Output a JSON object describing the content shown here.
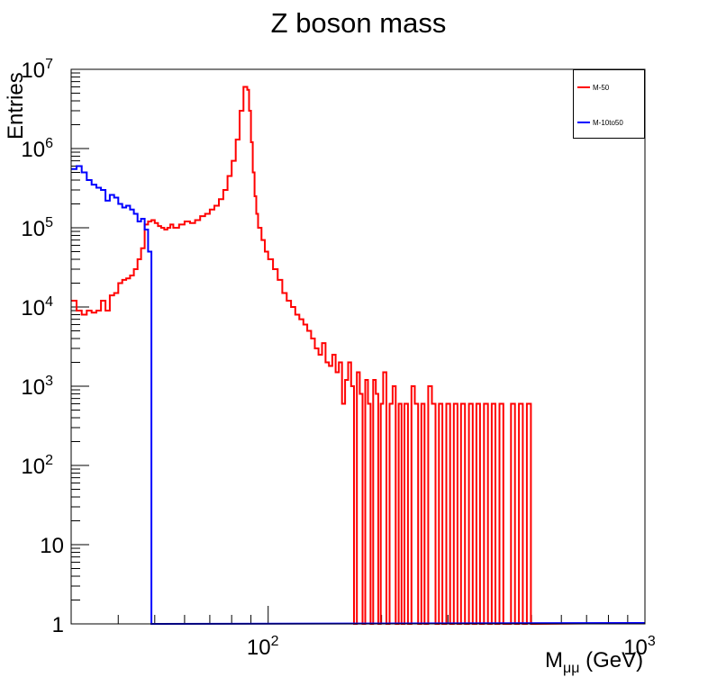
{
  "colors": {
    "m50": "#ff0000",
    "m10to50": "#0000ff"
  },
  "chart_data": {
    "type": "line",
    "title": "Z boson mass",
    "xlabel": "Mμμ (GeV)",
    "xlabel_main": "M",
    "xlabel_sub": "μμ",
    "xlabel_unit": " (GeV)",
    "ylabel": "Entries",
    "xscale": "log",
    "yscale": "log",
    "xlim": [
      30,
      1000
    ],
    "ylim": [
      1,
      10000000
    ],
    "x_ticks": [
      {
        "base": "10",
        "exp": "2",
        "value": 100
      },
      {
        "base": "10",
        "exp": "3",
        "value": 1000
      }
    ],
    "y_ticks": [
      {
        "base": "1",
        "exp": "",
        "value": 1
      },
      {
        "base": "10",
        "exp": "",
        "value": 10
      },
      {
        "base": "10",
        "exp": "2",
        "value": 100
      },
      {
        "base": "10",
        "exp": "3",
        "value": 1000
      },
      {
        "base": "10",
        "exp": "4",
        "value": 10000
      },
      {
        "base": "10",
        "exp": "5",
        "value": 100000
      },
      {
        "base": "10",
        "exp": "6",
        "value": 1000000
      },
      {
        "base": "10",
        "exp": "7",
        "value": 10000000
      }
    ],
    "legend_position": "top-right",
    "series": [
      {
        "name": "M-50",
        "color": "#ff0000",
        "x": [
          30,
          31,
          32,
          33,
          34,
          35,
          36,
          37,
          38,
          39,
          40,
          41,
          42,
          43,
          44,
          45,
          46,
          47,
          48,
          49,
          50,
          51,
          52,
          53,
          54,
          55,
          56,
          58,
          60,
          62,
          64,
          66,
          68,
          70,
          72,
          74,
          76,
          78,
          80,
          82,
          84,
          86,
          88,
          89,
          90,
          91,
          92,
          93,
          94,
          96,
          98,
          100,
          103,
          106,
          109,
          112,
          115,
          118,
          121,
          124,
          127,
          130,
          133,
          136,
          139,
          142,
          145,
          148,
          151,
          154,
          157,
          160,
          163,
          166,
          169,
          172,
          175,
          178,
          181,
          184,
          187,
          190,
          193,
          196,
          199,
          202,
          206,
          210,
          214,
          218,
          222,
          226,
          230,
          235,
          240,
          245,
          250,
          255,
          260,
          266,
          272,
          278,
          284,
          290,
          297,
          304,
          311,
          318,
          325,
          333,
          341,
          349,
          357,
          365,
          374,
          383,
          392,
          401,
          411,
          421,
          431,
          441,
          452,
          463,
          474,
          486,
          498
        ],
        "values": [
          12000,
          9000,
          8000,
          9000,
          8500,
          9000,
          12000,
          9000,
          14000,
          15000,
          20000,
          22000,
          23000,
          25000,
          30000,
          40000,
          55000,
          110000,
          120000,
          125000,
          115000,
          105000,
          100000,
          95000,
          100000,
          110000,
          100000,
          110000,
          120000,
          115000,
          125000,
          140000,
          150000,
          170000,
          190000,
          230000,
          300000,
          450000,
          700000,
          1300000,
          3000000,
          6000000,
          5500000,
          3000000,
          1200000,
          500000,
          250000,
          150000,
          100000,
          70000,
          50000,
          40000,
          30000,
          22000,
          15000,
          12000,
          10000,
          8000,
          7000,
          6000,
          5000,
          4000,
          3000,
          2500,
          3500,
          2000,
          1800,
          2500,
          1500,
          2000,
          600,
          1200,
          2000,
          1000,
          1,
          1500,
          800,
          1,
          1200,
          600,
          1,
          1200,
          800,
          1,
          600,
          1500,
          1,
          600,
          1000,
          1,
          600,
          1,
          600,
          1,
          1000,
          600,
          1,
          600,
          1,
          1000,
          600,
          1,
          600,
          1,
          600,
          1,
          600,
          1,
          600,
          1,
          600,
          1,
          600,
          1,
          600,
          1,
          600,
          1,
          600,
          1,
          1,
          600,
          1,
          600,
          1,
          600,
          1
        ]
      },
      {
        "name": "M-10to50",
        "color": "#0000ff",
        "x": [
          30,
          31,
          32,
          33,
          34,
          35,
          36,
          37,
          38,
          39,
          40,
          41,
          42,
          43,
          44,
          45,
          46,
          47,
          48,
          49,
          50
        ],
        "values": [
          550000,
          600000,
          500000,
          400000,
          350000,
          320000,
          300000,
          220000,
          260000,
          240000,
          200000,
          180000,
          190000,
          170000,
          150000,
          120000,
          130000,
          95000,
          50000,
          1,
          1
        ]
      }
    ]
  }
}
